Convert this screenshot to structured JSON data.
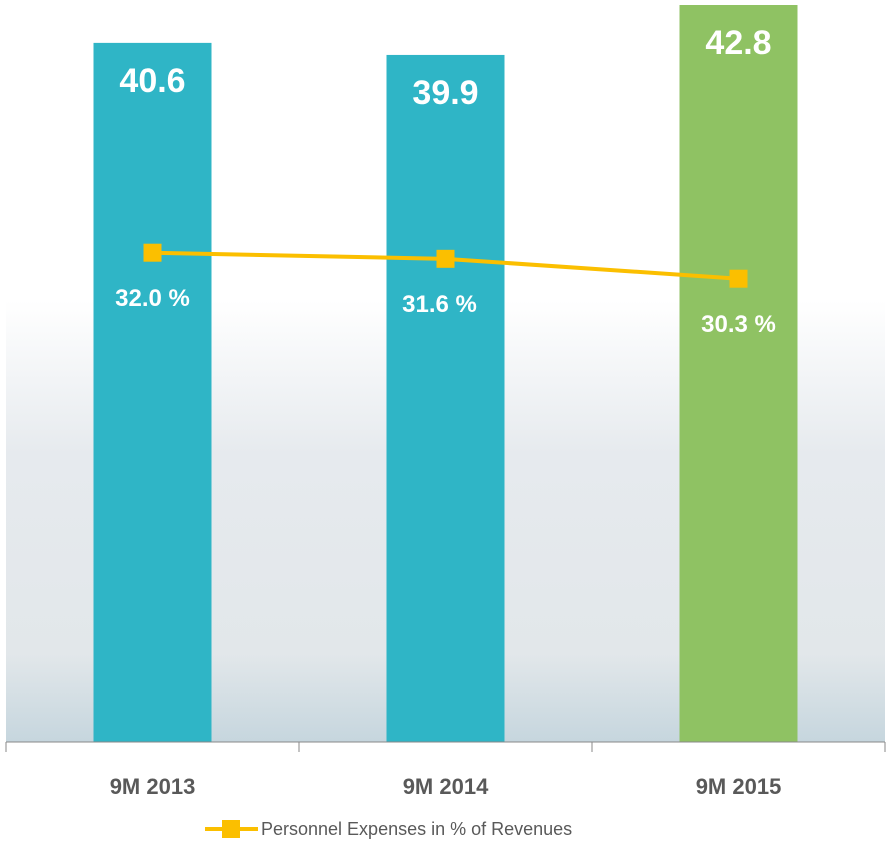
{
  "chart_data": {
    "type": "bar_line",
    "categories": [
      "9M 2013",
      "9M 2014",
      "9M 2015"
    ],
    "series": [
      {
        "type": "bar",
        "colors": [
          "#2fb5c6",
          "#2fb5c6",
          "#8fc263"
        ],
        "values": [
          40.6,
          39.9,
          42.8
        ]
      },
      {
        "type": "line",
        "axis": "y2",
        "name": "Personnel Expenses in % of Revenues",
        "color": "#fbbf00",
        "values": [
          32.0,
          31.6,
          30.3
        ],
        "value_labels": [
          "32.0 %",
          "31.6 %",
          "30.3 %"
        ]
      }
    ],
    "ylim": [
      0,
      42.8
    ],
    "y2lim": [
      0,
      48.2
    ]
  }
}
